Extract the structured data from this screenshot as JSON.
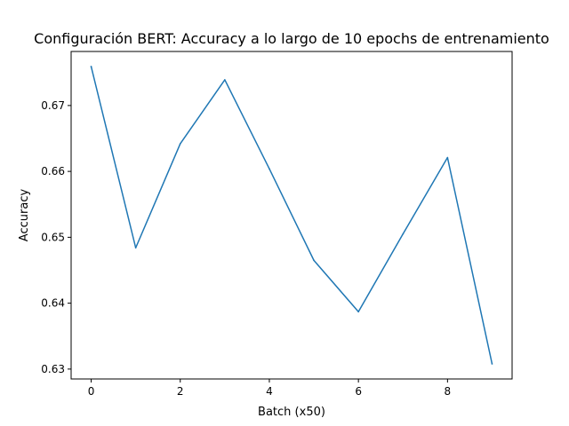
{
  "chart_data": {
    "type": "line",
    "title": "Configuración BERT: Accuracy a lo largo de 10 epochs de entrenamiento",
    "xlabel": "Batch (x50)",
    "ylabel": "Accuracy",
    "x": [
      0,
      1,
      2,
      3,
      4,
      5,
      6,
      7,
      8,
      9
    ],
    "series": [
      {
        "values": [
          0.6759,
          0.6484,
          0.6642,
          0.6739,
          0.6604,
          0.6465,
          0.6387,
          0.6505,
          0.6621,
          0.6308
        ],
        "color": "#1f77b4"
      }
    ],
    "xlim": [
      -0.45,
      9.45
    ],
    "ylim": [
      0.6285,
      0.6782
    ],
    "xticks": [
      0,
      2,
      4,
      6,
      8
    ],
    "xtick_labels": [
      "0",
      "2",
      "4",
      "6",
      "8"
    ],
    "yticks": [
      0.63,
      0.64,
      0.65,
      0.66,
      0.67
    ],
    "ytick_labels": [
      "0.63",
      "0.64",
      "0.65",
      "0.66",
      "0.67"
    ],
    "grid": false,
    "legend": "none"
  }
}
